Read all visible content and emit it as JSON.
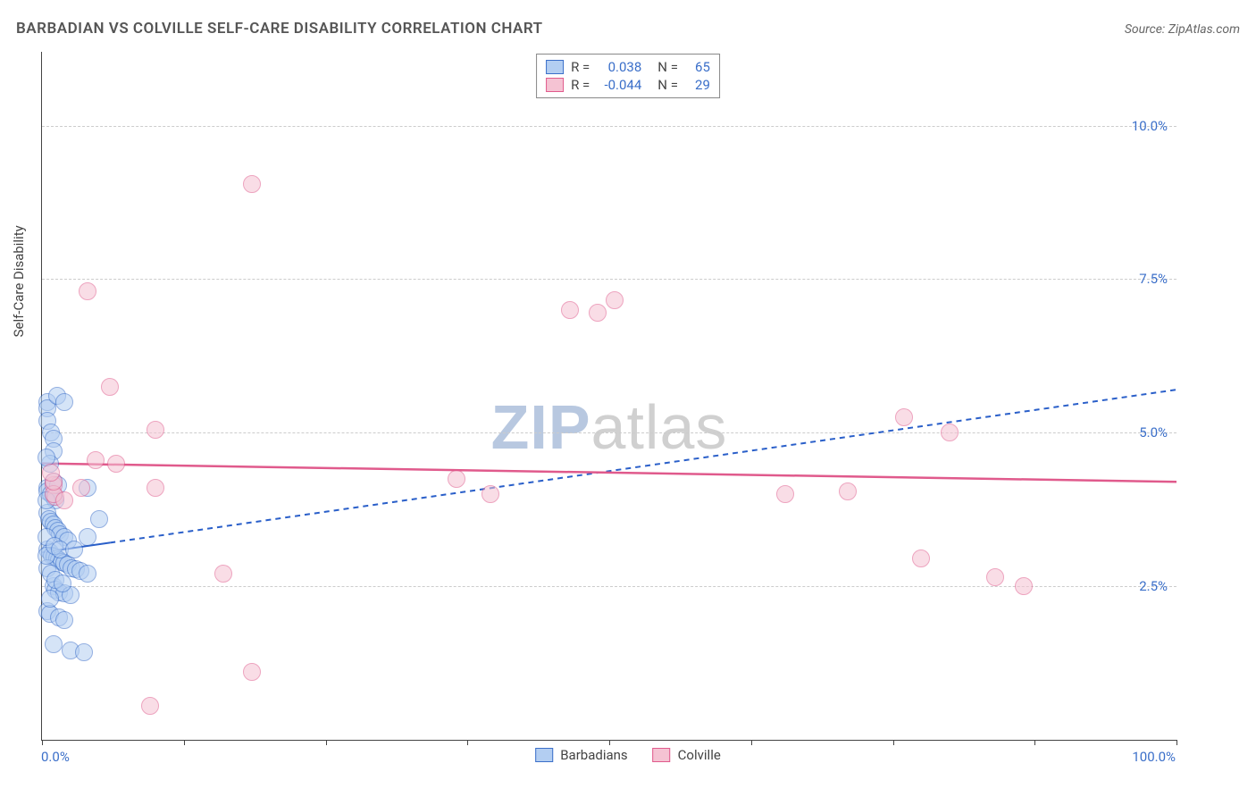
{
  "title": "BARBADIAN VS COLVILLE SELF-CARE DISABILITY CORRELATION CHART",
  "source": "Source: ZipAtlas.com",
  "y_axis_title": "Self-Care Disability",
  "watermark_part1": "ZIP",
  "watermark_part2": "atlas",
  "chart": {
    "type": "scatter",
    "background_color": "#ffffff",
    "grid_color": "#cccccc",
    "axis_color": "#444444",
    "tick_label_color": "#3b6fc9",
    "xlim": [
      0,
      100
    ],
    "ylim": [
      0,
      11.2
    ],
    "y_ticks": [
      2.5,
      5.0,
      7.5,
      10.0
    ],
    "y_tick_labels": [
      "2.5%",
      "5.0%",
      "7.5%",
      "10.0%"
    ],
    "x_ticks": [
      0,
      12.5,
      25,
      37.5,
      50,
      62.5,
      75,
      87.5,
      100
    ],
    "x_left_label": "0.0%",
    "x_right_label": "100.0%",
    "marker_radius": 10,
    "marker_border_width": 1.5,
    "series": [
      {
        "name": "Barbadians",
        "fill_color": "#b3cef2",
        "stroke_color": "#3b6fc9",
        "fill_opacity": 0.55,
        "trend": {
          "x1": 0,
          "y1": 3.05,
          "x2": 100,
          "y2": 5.7,
          "solid_xmax": 6,
          "color": "#2a5fc9",
          "width": 2,
          "dash": "6 5"
        },
        "points": [
          [
            0.5,
            5.5
          ],
          [
            0.5,
            5.4
          ],
          [
            0.5,
            5.2
          ],
          [
            0.8,
            5.0
          ],
          [
            1.0,
            4.9
          ],
          [
            1.0,
            4.7
          ],
          [
            0.7,
            4.5
          ],
          [
            1.3,
            5.6
          ],
          [
            2.0,
            5.5
          ],
          [
            0.5,
            4.1
          ],
          [
            0.5,
            4.05
          ],
          [
            0.8,
            4.0
          ],
          [
            1.0,
            3.95
          ],
          [
            1.2,
            3.9
          ],
          [
            4.0,
            4.1
          ],
          [
            0.5,
            3.7
          ],
          [
            0.6,
            3.6
          ],
          [
            0.8,
            3.55
          ],
          [
            1.0,
            3.5
          ],
          [
            1.2,
            3.45
          ],
          [
            1.4,
            3.4
          ],
          [
            1.6,
            3.35
          ],
          [
            2.0,
            3.3
          ],
          [
            2.3,
            3.25
          ],
          [
            4.0,
            3.3
          ],
          [
            5.0,
            3.6
          ],
          [
            0.5,
            3.1
          ],
          [
            0.7,
            3.05
          ],
          [
            0.9,
            3.0
          ],
          [
            1.1,
            2.98
          ],
          [
            1.3,
            2.95
          ],
          [
            1.5,
            2.92
          ],
          [
            1.7,
            2.9
          ],
          [
            2.0,
            2.88
          ],
          [
            2.3,
            2.85
          ],
          [
            2.6,
            2.8
          ],
          [
            3.0,
            2.78
          ],
          [
            3.4,
            2.75
          ],
          [
            4.0,
            2.7
          ],
          [
            1.0,
            2.5
          ],
          [
            1.2,
            2.45
          ],
          [
            1.5,
            2.4
          ],
          [
            2.0,
            2.38
          ],
          [
            2.5,
            2.35
          ],
          [
            0.5,
            2.1
          ],
          [
            0.7,
            2.05
          ],
          [
            1.5,
            2.0
          ],
          [
            2.0,
            1.95
          ],
          [
            1.0,
            1.55
          ],
          [
            2.5,
            1.45
          ],
          [
            3.7,
            1.42
          ],
          [
            1.0,
            4.2
          ],
          [
            1.4,
            4.15
          ],
          [
            0.4,
            3.3
          ],
          [
            0.5,
            2.8
          ],
          [
            0.8,
            2.7
          ],
          [
            1.2,
            2.6
          ],
          [
            1.8,
            2.55
          ],
          [
            0.4,
            3.9
          ],
          [
            0.4,
            3.0
          ],
          [
            1.1,
            3.15
          ],
          [
            1.6,
            3.1
          ],
          [
            0.7,
            2.3
          ],
          [
            2.8,
            3.1
          ],
          [
            0.4,
            4.6
          ]
        ]
      },
      {
        "name": "Colville",
        "fill_color": "#f5c3d3",
        "stroke_color": "#e05a8c",
        "fill_opacity": 0.55,
        "trend": {
          "x1": 0,
          "y1": 4.5,
          "x2": 100,
          "y2": 4.2,
          "solid_xmax": 100,
          "color": "#e05a8c",
          "width": 2.5,
          "dash": "none"
        },
        "points": [
          [
            4.0,
            7.3
          ],
          [
            18.5,
            9.05
          ],
          [
            46.5,
            7.0
          ],
          [
            50.5,
            7.15
          ],
          [
            6.0,
            5.75
          ],
          [
            10.0,
            5.05
          ],
          [
            4.7,
            4.55
          ],
          [
            6.5,
            4.5
          ],
          [
            3.5,
            4.1
          ],
          [
            1.0,
            4.15
          ],
          [
            1.2,
            3.95
          ],
          [
            36.5,
            4.25
          ],
          [
            39.5,
            4.0
          ],
          [
            65.5,
            4.0
          ],
          [
            71.0,
            4.05
          ],
          [
            76.0,
            5.25
          ],
          [
            80.0,
            5.0
          ],
          [
            77.5,
            2.95
          ],
          [
            84.0,
            2.65
          ],
          [
            86.5,
            2.5
          ],
          [
            16.0,
            2.7
          ],
          [
            18.5,
            1.1
          ],
          [
            9.5,
            0.55
          ],
          [
            10.0,
            4.1
          ],
          [
            1.0,
            4.0
          ],
          [
            2.0,
            3.9
          ],
          [
            49.0,
            6.95
          ],
          [
            1.0,
            4.2
          ],
          [
            0.8,
            4.35
          ]
        ]
      }
    ]
  },
  "stats_legend": {
    "rows": [
      {
        "swatch_fill": "#b3cef2",
        "swatch_stroke": "#3b6fc9",
        "r": "0.038",
        "n": "65"
      },
      {
        "swatch_fill": "#f5c3d3",
        "swatch_stroke": "#e05a8c",
        "r": "-0.044",
        "n": "29"
      }
    ],
    "r_label": "R =",
    "n_label": "N ="
  },
  "bottom_legend": {
    "items": [
      {
        "swatch_fill": "#b3cef2",
        "swatch_stroke": "#3b6fc9",
        "label": "Barbadians"
      },
      {
        "swatch_fill": "#f5c3d3",
        "swatch_stroke": "#e05a8c",
        "label": "Colville"
      }
    ]
  }
}
